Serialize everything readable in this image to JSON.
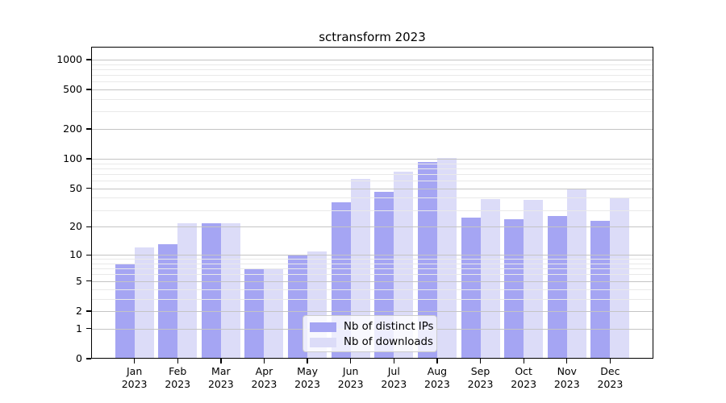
{
  "title": "sctransform 2023",
  "chart_data": {
    "type": "bar",
    "title": "sctransform 2023",
    "x_tick_months": [
      "Jan",
      "Feb",
      "Mar",
      "Apr",
      "May",
      "Jun",
      "Jul",
      "Aug",
      "Sep",
      "Oct",
      "Nov",
      "Dec"
    ],
    "x_tick_year": "2023",
    "series": [
      {
        "name": "Nb of distinct IPs",
        "color": "#a5a5f3",
        "values": [
          8,
          13,
          22,
          7,
          10,
          36,
          46,
          93,
          25,
          24,
          26,
          23
        ]
      },
      {
        "name": "Nb of downloads",
        "color": "#dcdcf8",
        "values": [
          12,
          22,
          22,
          7,
          11,
          63,
          74,
          102,
          39,
          38,
          50,
          40
        ]
      }
    ],
    "y_scale": "log10(1+y)",
    "y_major_ticks": [
      0,
      1,
      2,
      5,
      10,
      20,
      50,
      100,
      200,
      500,
      1000
    ],
    "y_minor_gridlines": [
      3,
      4,
      6,
      7,
      8,
      9,
      30,
      40,
      60,
      70,
      80,
      90,
      300,
      400,
      600,
      700,
      800,
      900
    ],
    "ylim": [
      0,
      1345
    ],
    "grid": true,
    "legend_position": "lower center",
    "colors": {
      "background": "#ffffff",
      "axis": "#000000",
      "major_grid": "#c4c4c4",
      "minor_grid": "#e9e9e9",
      "legend_bg": "rgba(255,255,255,0.8)",
      "legend_border": "#cccccc"
    }
  }
}
